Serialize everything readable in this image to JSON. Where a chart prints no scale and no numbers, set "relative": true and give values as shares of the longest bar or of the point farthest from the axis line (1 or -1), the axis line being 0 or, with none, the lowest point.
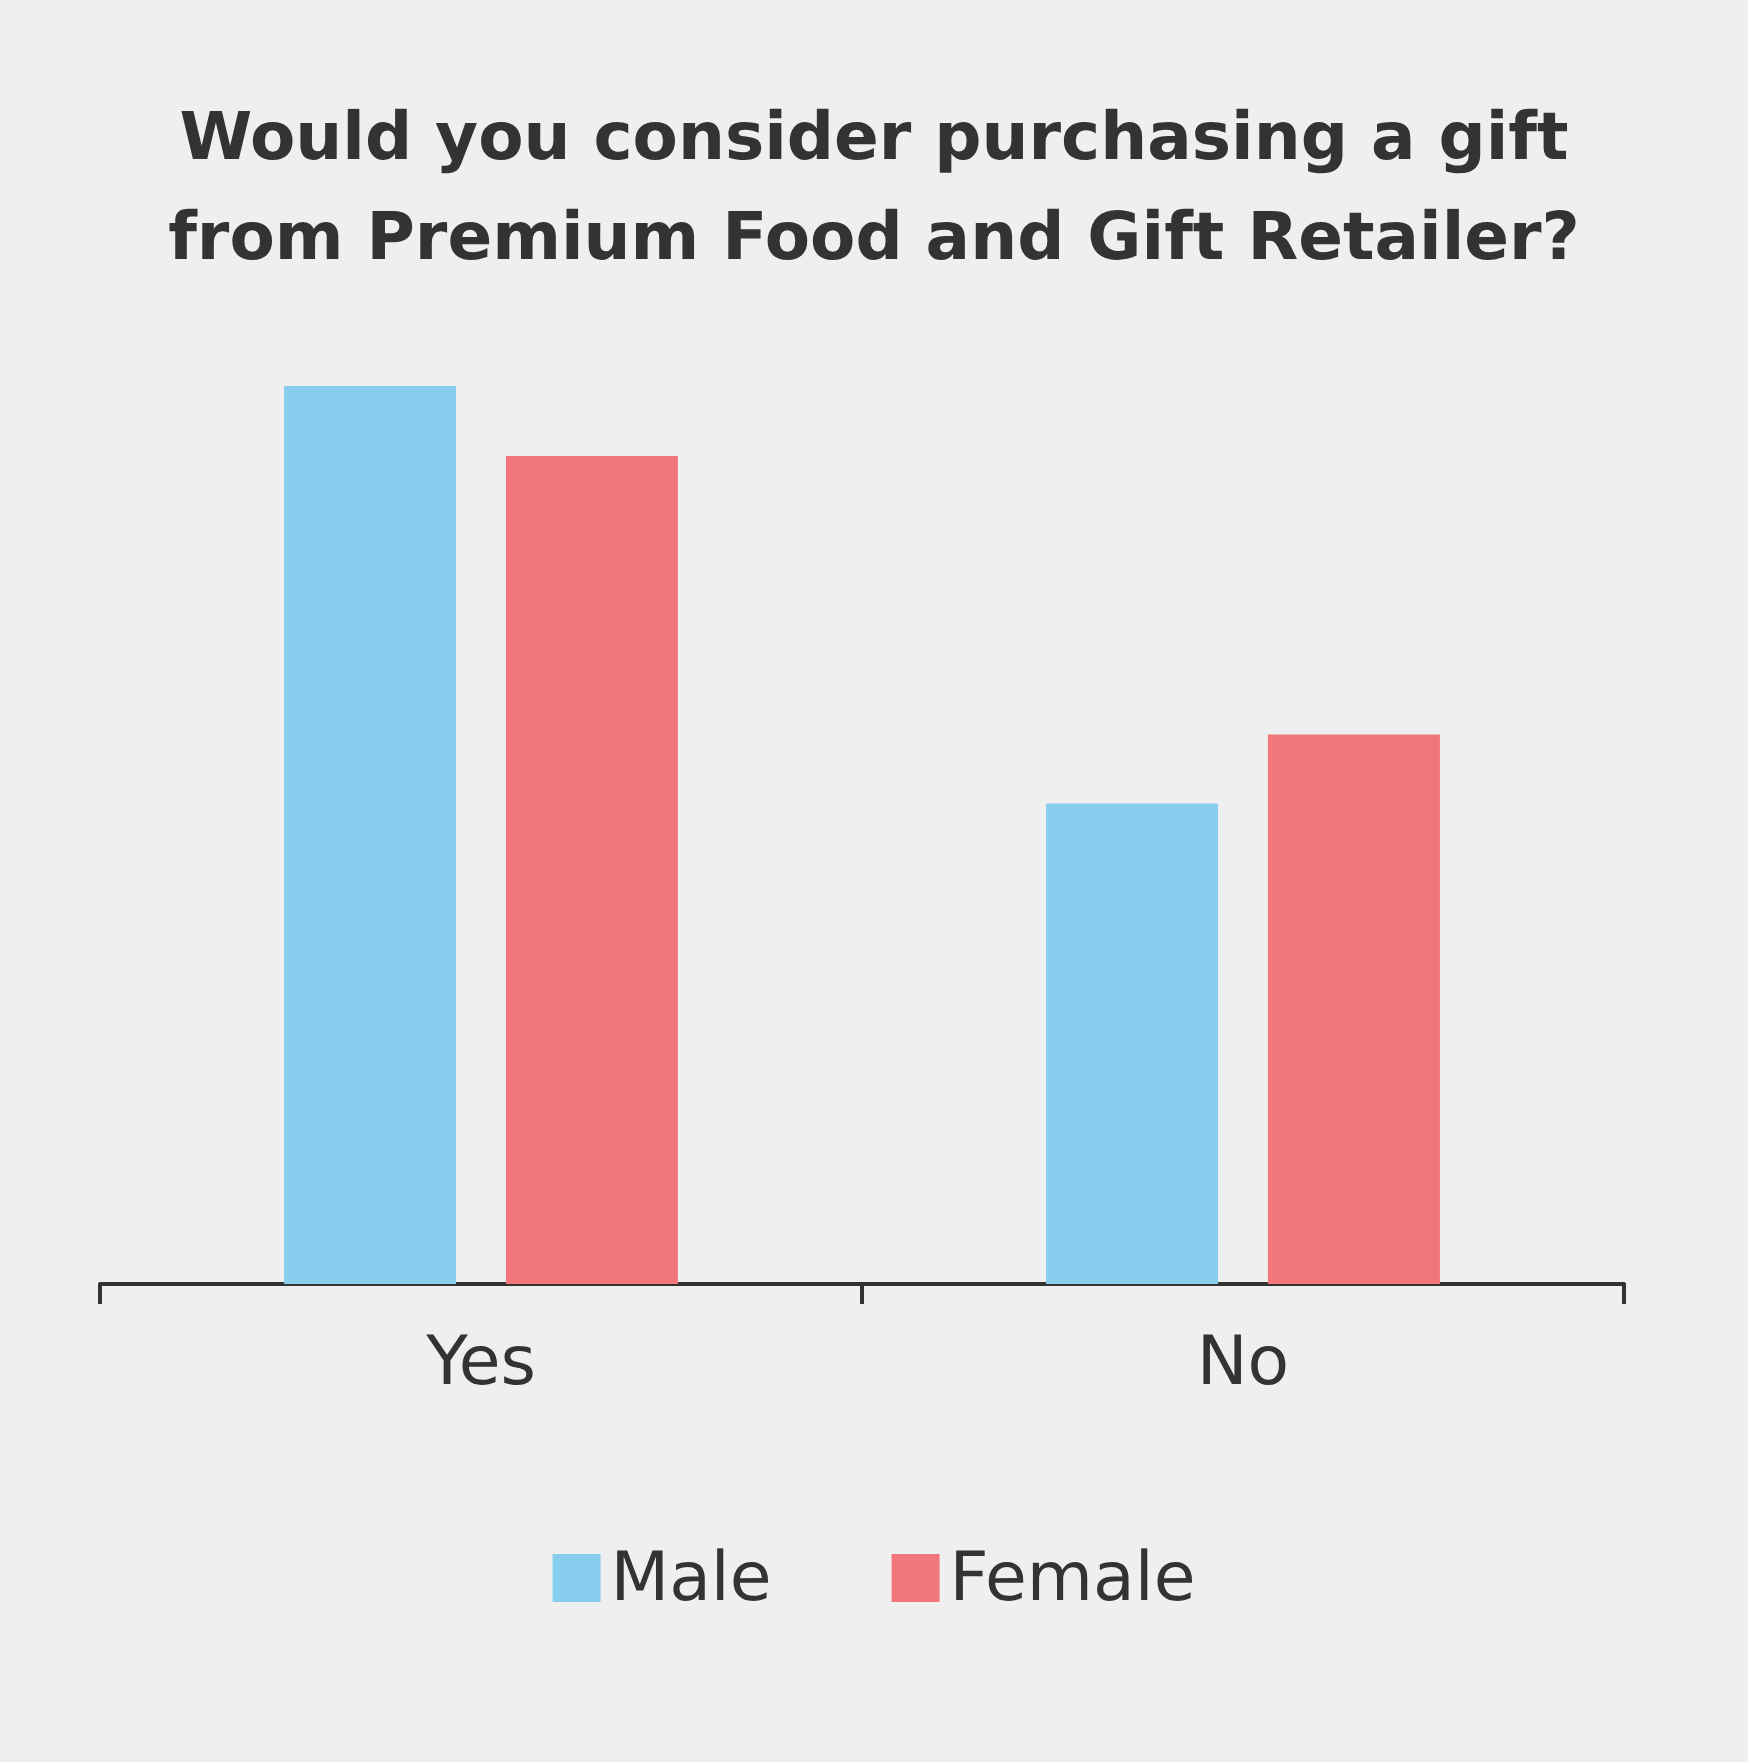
{
  "chart_data": {
    "type": "bar",
    "title": "Would you consider purchasing a gift\nfrom Premium Food and Gift Retailer?",
    "relative": true,
    "categories": [
      "Yes",
      "No"
    ],
    "series": [
      {
        "name": "Male",
        "color": "#87ceef",
        "values": [
          1,
          0.535
        ]
      },
      {
        "name": "Female",
        "color": "#f2777a",
        "values": [
          0.922,
          0.612
        ]
      }
    ],
    "legend": "bottom"
  }
}
